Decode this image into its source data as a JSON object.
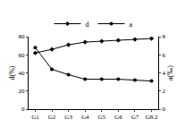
{
  "chart_data": {
    "type": "line",
    "categories": [
      "G1",
      "G2",
      "G3",
      "G4",
      "G5",
      "G6",
      "G7",
      "G8.2"
    ],
    "series": [
      {
        "name": "d",
        "color": "#000000",
        "marker": "diamond",
        "line_style": "solid",
        "values": [
          62,
          66,
          71,
          74,
          75,
          76,
          77,
          78
        ]
      },
      {
        "name": "a",
        "color": "#000000",
        "marker": "circle",
        "line_style": "solid",
        "axis": "y2",
        "values": [
          6.8,
          4.4,
          3.8,
          3.3,
          3.3,
          3.3,
          3.2,
          3.1
        ]
      }
    ],
    "y_label": "d(%)",
    "y2_label": "a(‰)",
    "ylim": [
      0,
      80
    ],
    "yticks": [
      0,
      20,
      40,
      60,
      80
    ],
    "y2lim": [
      0,
      8
    ],
    "y2ticks": [
      0,
      2,
      4,
      6,
      8
    ],
    "grid": false,
    "legend": "top"
  }
}
